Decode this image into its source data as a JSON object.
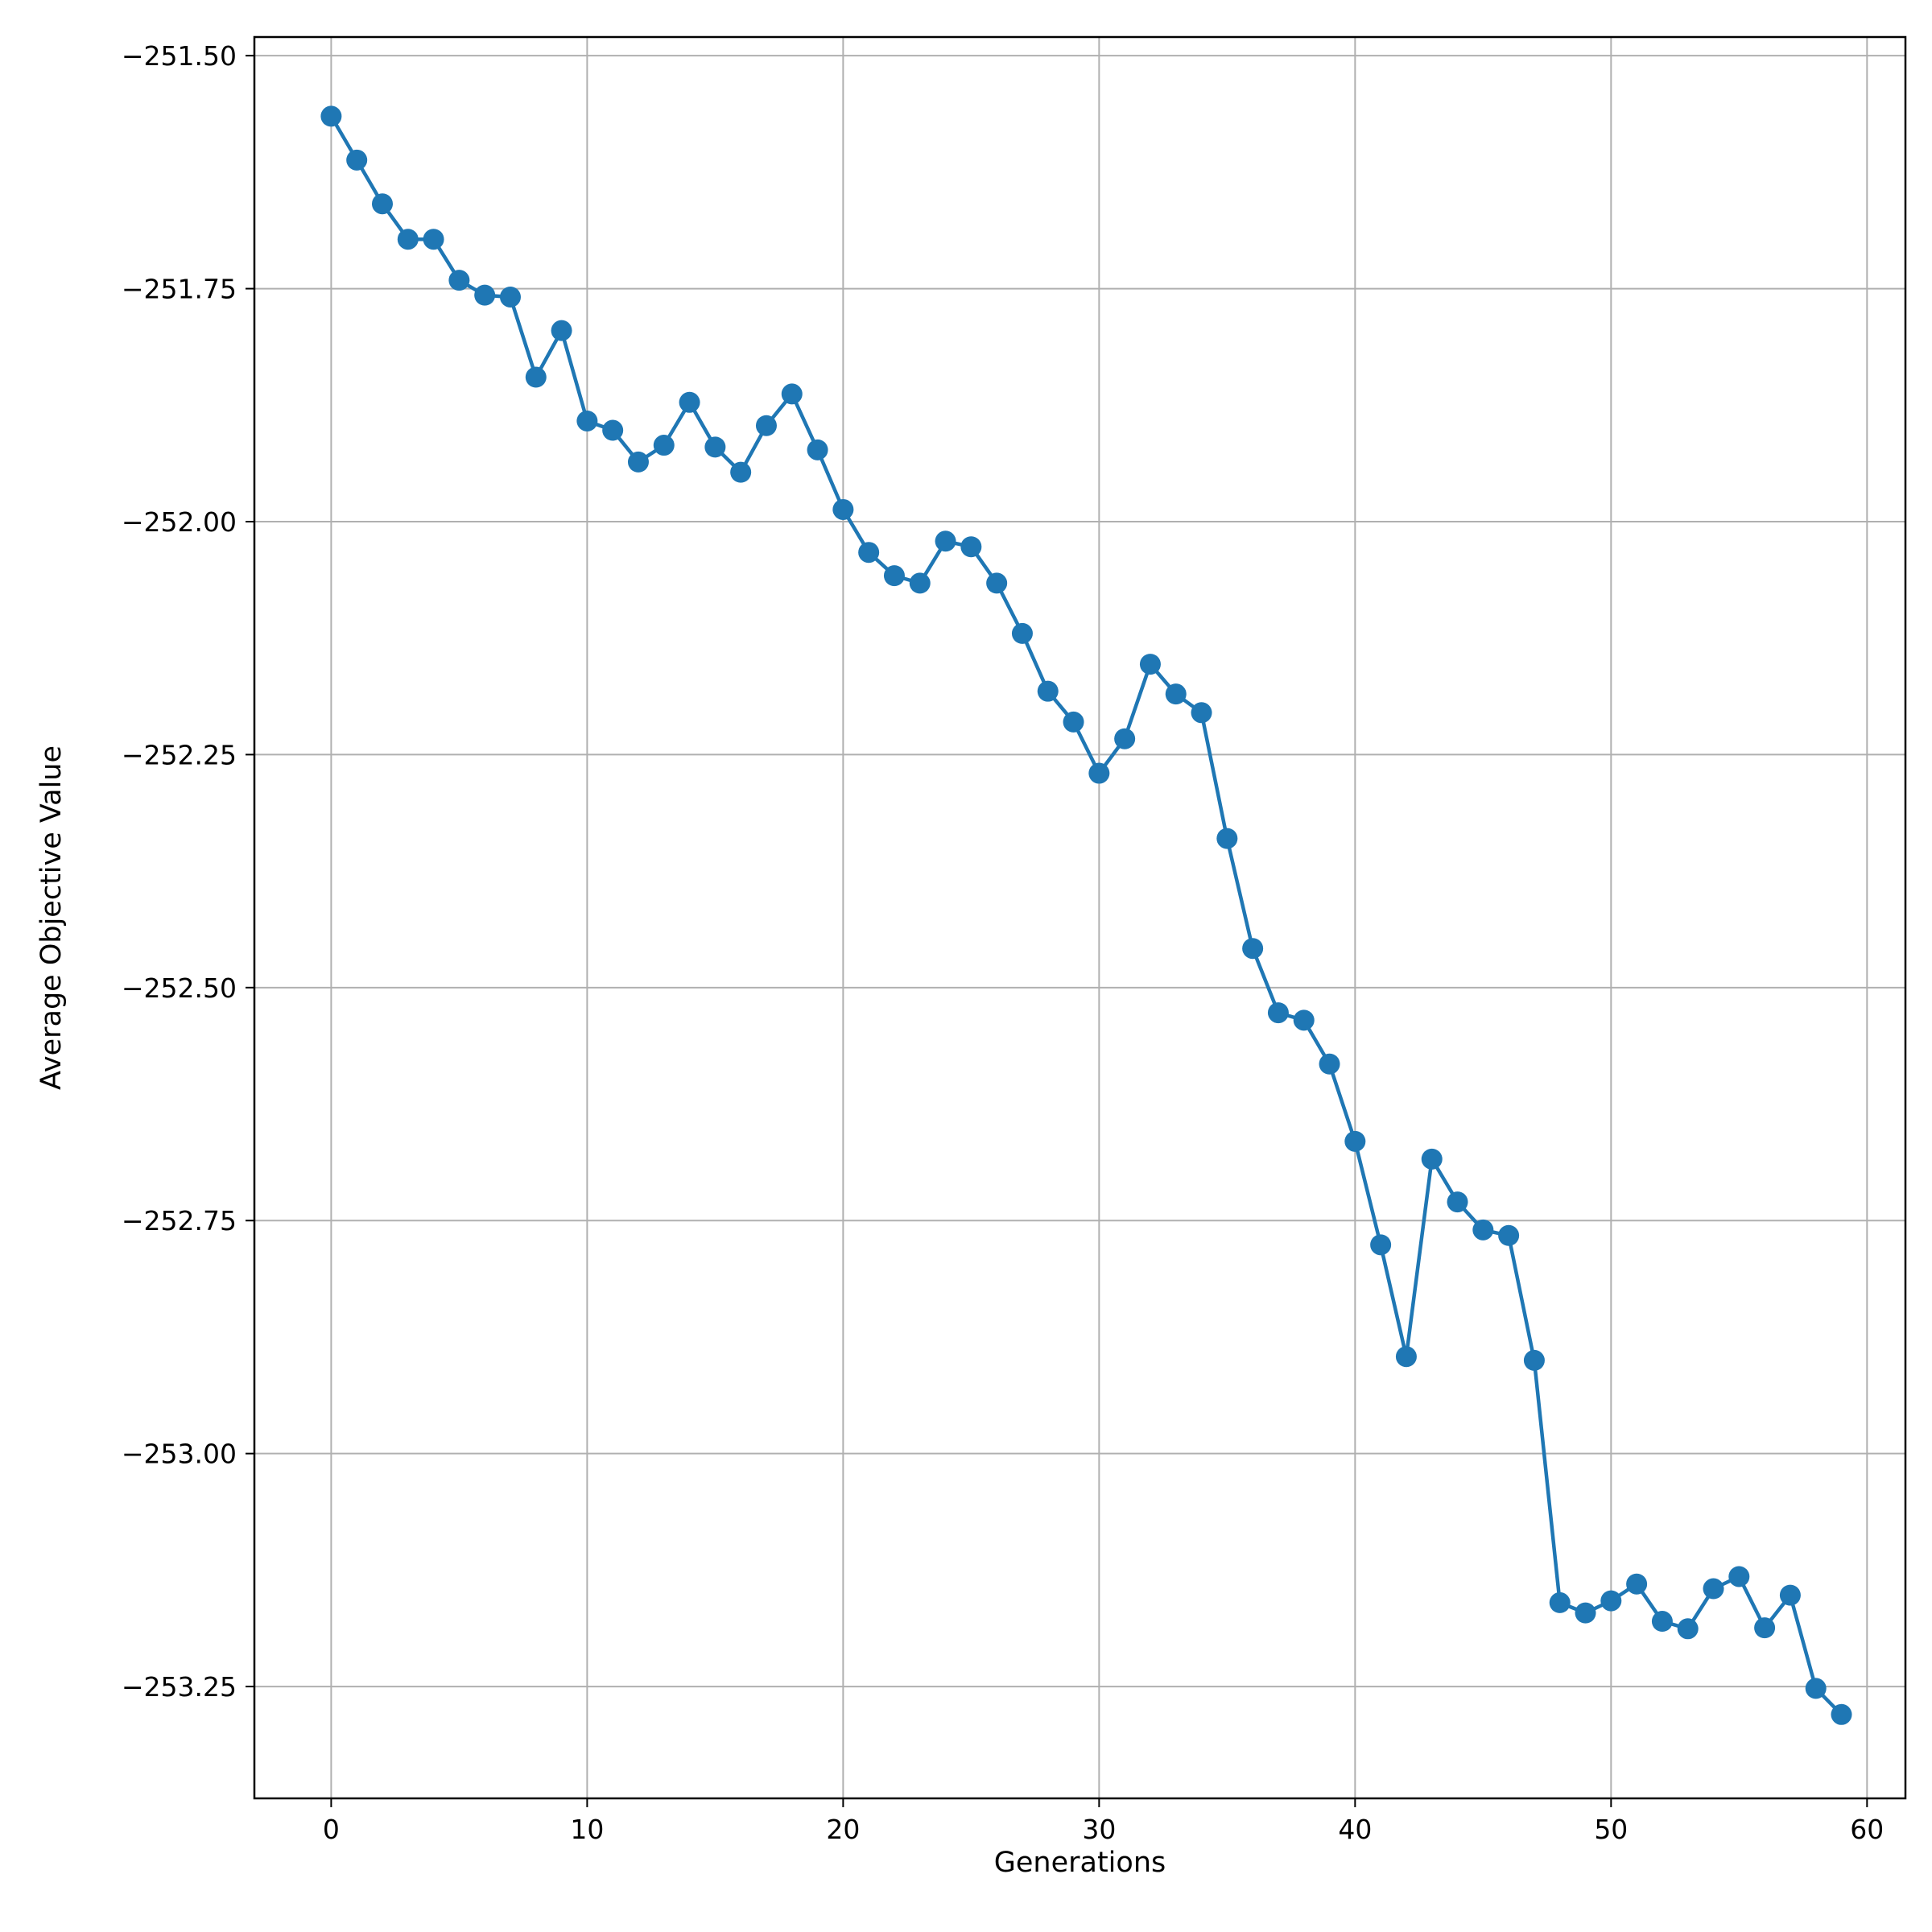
{
  "chart_data": {
    "type": "line",
    "title": "",
    "xlabel": "Generations",
    "ylabel": "Average Objective Value",
    "xlim": [
      -3,
      61.5
    ],
    "ylim": [
      -253.37,
      -251.48
    ],
    "x_ticks": [
      0,
      10,
      20,
      30,
      40,
      50,
      60
    ],
    "x_tick_labels": [
      "0",
      "10",
      "20",
      "30",
      "40",
      "50",
      "60"
    ],
    "y_ticks": [
      -251.5,
      -251.75,
      -252.0,
      -252.25,
      -252.5,
      -252.75,
      -253.0,
      -253.25
    ],
    "y_tick_labels": [
      "−251.50",
      "−251.75",
      "−252.00",
      "−252.25",
      "−252.50",
      "−252.75",
      "−253.00",
      "−253.25"
    ],
    "grid": true,
    "color": "#1f77b4",
    "marker": "circle",
    "series": [
      {
        "x": [
          0,
          1,
          2,
          3,
          4,
          5,
          6,
          7,
          8,
          9,
          10,
          11,
          12,
          13,
          14,
          15,
          16,
          17,
          18,
          19,
          20,
          21,
          22,
          23,
          24,
          25,
          26,
          27,
          28,
          29,
          30,
          31,
          32,
          33,
          34,
          35,
          36,
          37,
          38,
          39,
          40,
          41,
          42,
          43,
          44,
          45,
          46,
          47,
          48,
          49,
          50,
          51,
          52,
          53,
          54,
          55,
          56,
          57,
          58,
          59
        ],
        "y": [
          -251.565,
          -251.612,
          -251.659,
          -251.697,
          -251.697,
          -251.741,
          -251.757,
          -251.759,
          -251.845,
          -251.795,
          -251.892,
          -251.902,
          -251.936,
          -251.918,
          -251.872,
          -251.92,
          -251.947,
          -251.897,
          -251.863,
          -251.923,
          -251.987,
          -252.033,
          -252.058,
          -252.066,
          -252.021,
          -252.027,
          -252.066,
          -252.12,
          -252.182,
          -252.215,
          -252.27,
          -252.233,
          -252.153,
          -252.185,
          -252.205,
          -252.34,
          -252.458,
          -252.527,
          -252.535,
          -252.582,
          -252.665,
          -252.776,
          -252.896,
          -252.684,
          -252.73,
          -252.76,
          -252.766,
          -252.9,
          -253.16,
          -253.171,
          -253.158,
          -253.14,
          -253.18,
          -253.188,
          -253.145,
          -253.132,
          -253.187,
          -253.152,
          -253.252,
          -253.28
        ]
      }
    ]
  }
}
